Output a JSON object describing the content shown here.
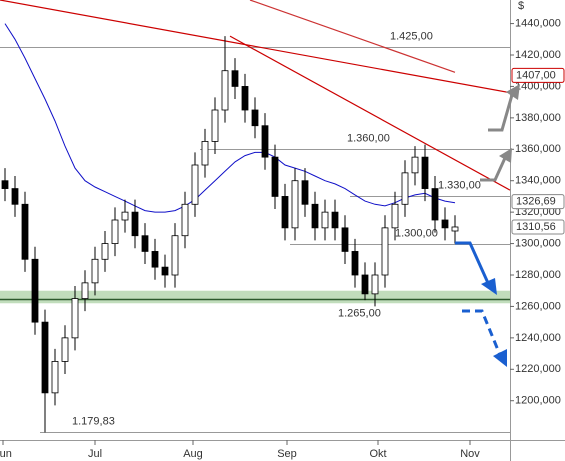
{
  "chart_data": {
    "type": "candlestick",
    "currency": "$",
    "open": [
      1340,
      1335,
      1325,
      1290,
      1250,
      1205,
      1225,
      1240,
      1265,
      1275,
      1290,
      1300,
      1315,
      1320,
      1305,
      1295,
      1285,
      1280,
      1305,
      1325,
      1350,
      1365,
      1385,
      1410,
      1400,
      1385,
      1375,
      1355,
      1330,
      1310,
      1340,
      1325,
      1310,
      1320,
      1310,
      1295,
      1280,
      1268,
      1280,
      1310,
      1325,
      1345,
      1355,
      1335,
      1315,
      1308
    ],
    "high": [
      1348,
      1343,
      1333,
      1298,
      1258,
      1233,
      1248,
      1273,
      1283,
      1298,
      1308,
      1323,
      1328,
      1328,
      1313,
      1303,
      1293,
      1313,
      1333,
      1358,
      1373,
      1393,
      1432,
      1418,
      1408,
      1393,
      1383,
      1363,
      1338,
      1348,
      1348,
      1333,
      1328,
      1328,
      1318,
      1303,
      1288,
      1288,
      1318,
      1333,
      1353,
      1362,
      1363,
      1343,
      1323,
      1318
    ],
    "low": [
      1327,
      1317,
      1282,
      1242,
      1179.83,
      1197,
      1217,
      1232,
      1257,
      1267,
      1282,
      1292,
      1307,
      1297,
      1287,
      1277,
      1272,
      1272,
      1297,
      1317,
      1342,
      1357,
      1377,
      1392,
      1377,
      1367,
      1347,
      1322,
      1302,
      1302,
      1317,
      1302,
      1302,
      1302,
      1287,
      1272,
      1264,
      1260,
      1272,
      1302,
      1317,
      1337,
      1327,
      1307,
      1302,
      1300
    ],
    "close": [
      1335,
      1325,
      1290,
      1250,
      1205,
      1225,
      1240,
      1265,
      1275,
      1290,
      1300,
      1315,
      1320,
      1305,
      1295,
      1285,
      1280,
      1305,
      1325,
      1350,
      1365,
      1385,
      1410,
      1400,
      1385,
      1375,
      1355,
      1330,
      1310,
      1340,
      1325,
      1310,
      1320,
      1310,
      1295,
      1280,
      1268,
      1280,
      1310,
      1325,
      1345,
      1355,
      1335,
      1315,
      1310,
      1310.56
    ],
    "up_color": "#ffffff",
    "down_color": "#000000",
    "series": [
      {
        "color": "#1010c8",
        "values": [
          1440,
          1430,
          1418,
          1405,
          1392,
          1378,
          1362,
          1348,
          1340,
          1336,
          1333,
          1330,
          1327,
          1324,
          1321,
          1320,
          1320,
          1321,
          1324,
          1328,
          1334,
          1340,
          1346,
          1352,
          1356,
          1358,
          1358,
          1355,
          1350,
          1348,
          1346,
          1343,
          1340,
          1338,
          1335,
          1331,
          1327,
          1325,
          1324,
          1326,
          1329,
          1331,
          1332,
          1329,
          1327,
          1326
        ]
      }
    ],
    "trendlines": [
      {
        "color": "#cc0000",
        "x": [
          -0.5,
          50.5
        ],
        "values": [
          1455,
          1396
        ]
      },
      {
        "color": "#cc0000",
        "x": [
          22.5,
          50.5
        ],
        "values": [
          1432,
          1334
        ]
      },
      {
        "color": "#cc3333",
        "x": [
          24.5,
          45
        ],
        "values": [
          1455,
          1409
        ]
      }
    ],
    "levels": {
      "values": [
        1425,
        1360,
        1330,
        1300,
        1265,
        1179.83
      ],
      "value_labels": [
        "1.425,00",
        "1.360,00",
        "1.330,00",
        "1.300,00",
        "1.265,00",
        "1.179,83"
      ]
    },
    "support_band": [
      1262,
      1270
    ],
    "price_tags": {
      "values": [
        1407,
        1326.69,
        1310.56
      ],
      "value_labels": [
        "1407,00",
        "1326,69",
        "1310,56"
      ],
      "colors": [
        "#cc0000",
        "#888888",
        "#888888"
      ]
    },
    "xlim": [
      -0.5,
      50.5
    ],
    "xticks": [
      {
        "value": -0.2,
        "label": "Jun"
      },
      {
        "value": 9,
        "label": "Jul"
      },
      {
        "value": 18.8,
        "label": "Aug"
      },
      {
        "value": 28.2,
        "label": "Sep"
      },
      {
        "value": 37.3,
        "label": "Okt"
      },
      {
        "value": 46.5,
        "label": "Nov"
      }
    ],
    "ylim": [
      1175,
      1455
    ],
    "yticks": [
      {
        "value": 1200,
        "label": "1200,000"
      },
      {
        "value": 1220,
        "label": "1220,000"
      },
      {
        "value": 1240,
        "label": "1240,000"
      },
      {
        "value": 1260,
        "label": "1260,000"
      },
      {
        "value": 1280,
        "label": "1280,000"
      },
      {
        "value": 1300,
        "label": "1300,000"
      },
      {
        "value": 1320,
        "label": "1320,000"
      },
      {
        "value": 1340,
        "label": "1340,000"
      },
      {
        "value": 1360,
        "label": "1360,000"
      },
      {
        "value": 1380,
        "label": "1380,000"
      },
      {
        "value": 1400,
        "label": "1400,000"
      },
      {
        "value": 1420,
        "label": "1420,000"
      },
      {
        "value": 1440,
        "label": "1440,000"
      }
    ]
  }
}
